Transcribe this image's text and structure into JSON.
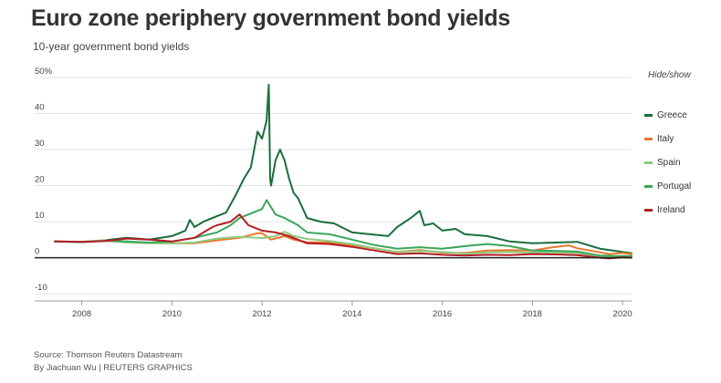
{
  "header": {
    "title": "Euro zone periphery government bond yields",
    "subtitle": "10-year government bond yields"
  },
  "legend": {
    "toggle_label": "Hide/show"
  },
  "footer": {
    "source": "Source: Thomson Reuters Datastream",
    "credit": "By Jiachuan Wu | REUTERS GRAPHICS"
  },
  "chart_data": {
    "type": "line",
    "title": "Euro zone periphery government bond yields",
    "subtitle": "10-year government bond yields",
    "xlabel": "",
    "ylabel": "",
    "xlim": [
      2007.4,
      2020.2
    ],
    "ylim": [
      -12,
      50
    ],
    "x_ticks": [
      2008,
      2010,
      2012,
      2014,
      2016,
      2018,
      2020
    ],
    "y_ticks": [
      {
        "value": 50,
        "label": "50%"
      },
      {
        "value": 40,
        "label": "40"
      },
      {
        "value": 30,
        "label": "30"
      },
      {
        "value": 20,
        "label": "20"
      },
      {
        "value": 10,
        "label": "10"
      },
      {
        "value": 0,
        "label": "0"
      },
      {
        "value": -10,
        "label": "-10"
      }
    ],
    "grid": "horizontal",
    "legend_position": "right",
    "series": [
      {
        "name": "Greece",
        "color": "#1a6e3c",
        "x": [
          2007.4,
          2008.0,
          2008.5,
          2009.0,
          2009.5,
          2010.0,
          2010.3,
          2010.4,
          2010.5,
          2010.7,
          2011.0,
          2011.2,
          2011.4,
          2011.6,
          2011.75,
          2011.9,
          2012.0,
          2012.1,
          2012.15,
          2012.18,
          2012.2,
          2012.3,
          2012.4,
          2012.5,
          2012.6,
          2012.7,
          2012.8,
          2013.0,
          2013.3,
          2013.6,
          2014.0,
          2014.4,
          2014.8,
          2015.0,
          2015.3,
          2015.5,
          2015.6,
          2015.8,
          2016.0,
          2016.3,
          2016.5,
          2017.0,
          2017.5,
          2018.0,
          2018.5,
          2019.0,
          2019.5,
          2020.0,
          2020.2
        ],
        "values": [
          4.5,
          4.4,
          4.8,
          5.5,
          5.0,
          6.0,
          7.5,
          10.5,
          8.5,
          10.0,
          11.5,
          12.5,
          17.0,
          22.0,
          25.0,
          35.0,
          33.0,
          38.0,
          48.0,
          22.0,
          20.0,
          27.0,
          30.0,
          27.0,
          22.0,
          18.0,
          16.5,
          11.0,
          10.0,
          9.5,
          7.0,
          6.5,
          6.0,
          8.5,
          11.0,
          13.0,
          9.0,
          9.5,
          7.5,
          8.0,
          6.5,
          6.0,
          4.5,
          4.0,
          4.2,
          4.4,
          2.5,
          1.6,
          1.2
        ]
      },
      {
        "name": "Italy",
        "color": "#e8782a",
        "x": [
          2007.4,
          2008.0,
          2008.5,
          2009.0,
          2009.5,
          2010.0,
          2010.5,
          2011.0,
          2011.5,
          2011.9,
          2012.0,
          2012.2,
          2012.5,
          2012.7,
          2013.0,
          2013.5,
          2014.0,
          2014.5,
          2015.0,
          2015.5,
          2016.0,
          2016.5,
          2017.0,
          2017.5,
          2018.0,
          2018.4,
          2018.8,
          2019.0,
          2019.5,
          2019.7,
          2020.0,
          2020.2
        ],
        "values": [
          4.5,
          4.4,
          4.7,
          4.3,
          4.1,
          4.0,
          4.0,
          4.8,
          5.5,
          6.8,
          6.8,
          5.0,
          6.0,
          5.0,
          4.3,
          4.2,
          3.5,
          2.6,
          1.6,
          2.1,
          1.4,
          1.3,
          2.0,
          2.1,
          2.0,
          2.8,
          3.4,
          2.6,
          1.5,
          1.0,
          1.3,
          1.0
        ]
      },
      {
        "name": "Spain",
        "color": "#8fc97f",
        "x": [
          2007.4,
          2008.0,
          2008.5,
          2009.0,
          2009.5,
          2010.0,
          2010.5,
          2011.0,
          2011.5,
          2011.9,
          2012.0,
          2012.3,
          2012.5,
          2012.7,
          2013.0,
          2013.5,
          2014.0,
          2014.5,
          2015.0,
          2015.5,
          2016.0,
          2016.5,
          2017.0,
          2017.5,
          2018.0,
          2018.5,
          2019.0,
          2019.5,
          2019.7,
          2020.0,
          2020.2
        ],
        "values": [
          4.5,
          4.4,
          4.8,
          4.2,
          4.0,
          4.0,
          4.2,
          5.3,
          5.8,
          5.5,
          5.4,
          6.0,
          7.2,
          6.0,
          5.2,
          4.6,
          3.8,
          2.6,
          1.6,
          1.9,
          1.6,
          1.1,
          1.5,
          1.6,
          1.4,
          1.5,
          1.3,
          0.5,
          0.2,
          0.5,
          0.3
        ]
      },
      {
        "name": "Portugal",
        "color": "#3aa65a",
        "x": [
          2007.4,
          2008.0,
          2008.5,
          2009.0,
          2009.5,
          2010.0,
          2010.5,
          2011.0,
          2011.3,
          2011.5,
          2011.8,
          2012.0,
          2012.1,
          2012.3,
          2012.5,
          2012.8,
          2013.0,
          2013.5,
          2014.0,
          2014.5,
          2015.0,
          2015.5,
          2016.0,
          2016.5,
          2017.0,
          2017.5,
          2018.0,
          2018.5,
          2019.0,
          2019.5,
          2020.0,
          2020.2
        ],
        "values": [
          4.5,
          4.3,
          4.7,
          4.5,
          4.2,
          4.5,
          5.5,
          7.0,
          9.0,
          11.0,
          12.5,
          13.5,
          16.0,
          12.0,
          11.0,
          9.0,
          7.0,
          6.5,
          5.0,
          3.5,
          2.5,
          2.9,
          2.5,
          3.2,
          3.8,
          3.2,
          2.0,
          1.9,
          1.7,
          0.6,
          0.4,
          0.5
        ]
      },
      {
        "name": "Ireland",
        "color": "#b31d24",
        "x": [
          2007.4,
          2008.0,
          2008.5,
          2009.0,
          2009.5,
          2010.0,
          2010.5,
          2010.9,
          2011.0,
          2011.3,
          2011.5,
          2011.7,
          2012.0,
          2012.3,
          2012.6,
          2013.0,
          2013.5,
          2014.0,
          2014.5,
          2015.0,
          2015.5,
          2016.0,
          2016.5,
          2017.0,
          2017.5,
          2018.0,
          2018.5,
          2019.0,
          2019.5,
          2019.7,
          2020.0,
          2020.2
        ],
        "values": [
          4.5,
          4.4,
          4.6,
          5.3,
          5.0,
          4.5,
          5.5,
          8.5,
          9.0,
          10.0,
          12.0,
          9.0,
          7.5,
          7.0,
          6.0,
          4.0,
          3.8,
          3.0,
          2.0,
          1.0,
          1.2,
          0.8,
          0.6,
          0.8,
          0.7,
          1.0,
          0.9,
          0.7,
          0.0,
          -0.2,
          0.1,
          0.0
        ]
      }
    ]
  }
}
